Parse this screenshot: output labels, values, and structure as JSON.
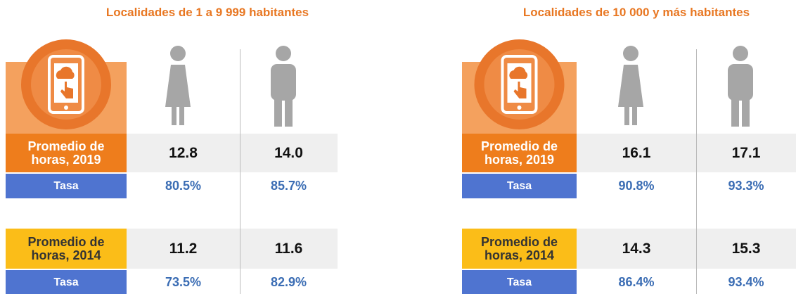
{
  "panels": [
    {
      "title": "Localidades de 1 a 9 999 habitantes",
      "rows": [
        {
          "label": "Promedio de horas, 2019",
          "values": [
            "12.8",
            "14.0"
          ]
        },
        {
          "label": "Tasa",
          "values": [
            "80.5%",
            "85.7%"
          ]
        },
        {
          "label": "Promedio de horas, 2014",
          "values": [
            "11.2",
            "11.6"
          ]
        },
        {
          "label": "Tasa",
          "values": [
            "73.5%",
            "82.9%"
          ]
        }
      ]
    },
    {
      "title": "Localidades de 10 000 y más habitantes",
      "rows": [
        {
          "label": "Promedio de horas, 2019",
          "values": [
            "16.1",
            "17.1"
          ]
        },
        {
          "label": "Tasa",
          "values": [
            "90.8%",
            "93.3%"
          ]
        },
        {
          "label": "Promedio de horas, 2014",
          "values": [
            "14.3",
            "15.3"
          ]
        },
        {
          "label": "Tasa",
          "values": [
            "86.4%",
            "93.4%"
          ]
        }
      ]
    }
  ]
}
